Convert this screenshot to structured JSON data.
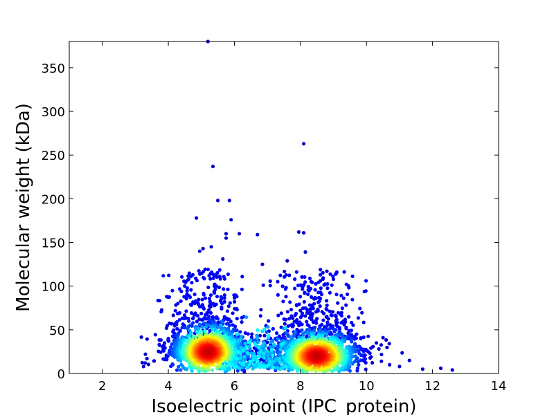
{
  "chart_data": {
    "type": "scatter",
    "title": "",
    "xlabel": "Isoelectric point (IPC_protein)",
    "ylabel": "Molecular weight (kDa)",
    "xlim": [
      1,
      14
    ],
    "ylim": [
      0,
      380
    ],
    "xticks": [
      2,
      4,
      6,
      8,
      10,
      12,
      14
    ],
    "yticks": [
      0,
      50,
      100,
      150,
      200,
      250,
      300,
      350
    ],
    "color_scale": "jet (point density)",
    "grid": false,
    "legend": "none",
    "clusters": [
      {
        "center_x": 5.2,
        "center_y": 25,
        "spread_x": 0.45,
        "spread_y": 12,
        "peak_color": "#d00000"
      },
      {
        "center_x": 8.5,
        "center_y": 20,
        "spread_x": 0.5,
        "spread_y": 11,
        "peak_color": "#ff4000"
      }
    ],
    "outliers": [
      {
        "x": 5.2,
        "y": 380
      },
      {
        "x": 8.1,
        "y": 263
      },
      {
        "x": 5.35,
        "y": 237
      },
      {
        "x": 5.5,
        "y": 198
      },
      {
        "x": 5.85,
        "y": 198
      },
      {
        "x": 4.85,
        "y": 178
      },
      {
        "x": 5.9,
        "y": 176
      },
      {
        "x": 7.95,
        "y": 162
      },
      {
        "x": 8.1,
        "y": 161
      },
      {
        "x": 6.7,
        "y": 159
      },
      {
        "x": 5.75,
        "y": 160
      },
      {
        "x": 6.15,
        "y": 160
      },
      {
        "x": 5.75,
        "y": 155
      },
      {
        "x": 5.3,
        "y": 145
      },
      {
        "x": 5.05,
        "y": 143
      },
      {
        "x": 8.15,
        "y": 139
      },
      {
        "x": 4.95,
        "y": 140
      },
      {
        "x": 5.65,
        "y": 131
      },
      {
        "x": 7.6,
        "y": 129
      },
      {
        "x": 8.8,
        "y": 117
      },
      {
        "x": 6.85,
        "y": 125
      },
      {
        "x": 3.95,
        "y": 88
      },
      {
        "x": 4.1,
        "y": 57
      },
      {
        "x": 3.3,
        "y": 12
      },
      {
        "x": 3.25,
        "y": 8
      },
      {
        "x": 10.5,
        "y": 41
      },
      {
        "x": 10.3,
        "y": 35
      },
      {
        "x": 11.3,
        "y": 15
      },
      {
        "x": 11.0,
        "y": 8
      },
      {
        "x": 12.25,
        "y": 6
      },
      {
        "x": 12.6,
        "y": 4
      },
      {
        "x": 11.7,
        "y": 5
      },
      {
        "x": 10.7,
        "y": 10
      },
      {
        "x": 9.3,
        "y": 60
      },
      {
        "x": 9.0,
        "y": 108
      },
      {
        "x": 8.6,
        "y": 106
      }
    ]
  }
}
